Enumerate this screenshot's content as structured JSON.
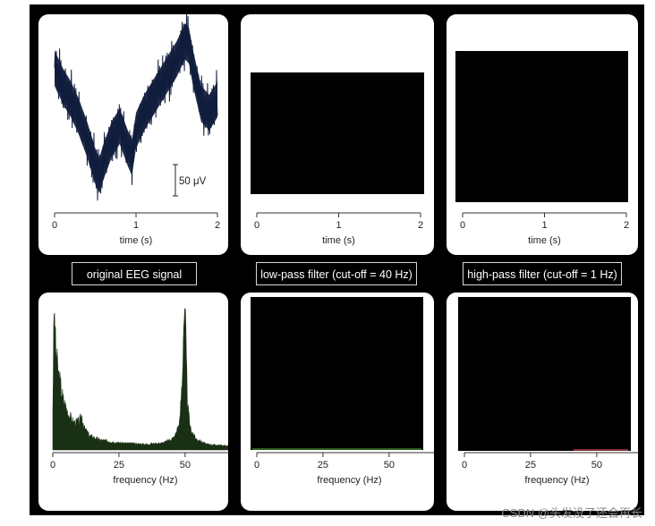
{
  "colors": {
    "frame": "#000000",
    "panel": "#ffffff",
    "eeg_trace": "#101c3c",
    "spectrum_fill": "#1a3014",
    "lowpass_trace": "#3a7a2a",
    "highpass_trace": "#b04040"
  },
  "captions": {
    "original": "original EEG signal",
    "lowpass": "low-pass filter (cut-off = 40 Hz)",
    "highpass": "high-pass filter (cut-off = 1 Hz)"
  },
  "watermark": "CSDN @头发没了还会再长",
  "chart_data": [
    {
      "type": "line",
      "panel": "original-time",
      "xlabel": "time (s)",
      "x_ticks": [
        "0",
        "1",
        "2"
      ],
      "xlim": [
        0,
        2
      ],
      "scale_bar_label": "50 μV",
      "series": [
        {
          "x": [
            0,
            0.1,
            0.2,
            0.3,
            0.4,
            0.5,
            0.55,
            0.6,
            0.7,
            0.8,
            0.9,
            0.95,
            1.0,
            1.1,
            1.2,
            1.3,
            1.4,
            1.5,
            1.6,
            1.65,
            1.7,
            1.8,
            1.9,
            2.0
          ],
          "y": [
            60,
            40,
            25,
            5,
            -20,
            -50,
            -60,
            -45,
            -20,
            -5,
            -30,
            -40,
            -10,
            10,
            25,
            40,
            55,
            70,
            90,
            85,
            60,
            20,
            10,
            25
          ]
        }
      ]
    },
    {
      "type": "line",
      "panel": "lowpass-time",
      "xlabel": "time (s)",
      "x_ticks": [
        "0",
        "1",
        "2"
      ],
      "xlim": [
        0,
        2
      ]
    },
    {
      "type": "line",
      "panel": "highpass-time",
      "xlabel": "time (s)",
      "x_ticks": [
        "0",
        "1",
        "2"
      ],
      "xlim": [
        0,
        2
      ]
    },
    {
      "type": "area",
      "panel": "original-spectrum",
      "xlabel": "frequency (Hz)",
      "x_ticks": [
        "0",
        "25",
        "50"
      ],
      "xlim": [
        0,
        70
      ],
      "series": [
        {
          "x": [
            0,
            0.5,
            1,
            2,
            3,
            4,
            6,
            8,
            10,
            11,
            12,
            14,
            18,
            25,
            35,
            42,
            46,
            48,
            49,
            49.5,
            50,
            50.5,
            51,
            52,
            54,
            58,
            65,
            70
          ],
          "y": [
            0.3,
            1.0,
            0.75,
            0.55,
            0.45,
            0.35,
            0.25,
            0.19,
            0.2,
            0.24,
            0.15,
            0.1,
            0.07,
            0.05,
            0.04,
            0.05,
            0.09,
            0.2,
            0.55,
            0.93,
            1.0,
            0.6,
            0.3,
            0.15,
            0.08,
            0.04,
            0.03,
            0.02
          ]
        }
      ]
    },
    {
      "type": "area",
      "panel": "lowpass-spectrum",
      "xlabel": "frequency (Hz)",
      "x_ticks": [
        "0",
        "25",
        "50"
      ],
      "xlim": [
        0,
        70
      ]
    },
    {
      "type": "area",
      "panel": "highpass-spectrum",
      "xlabel": "frequency (Hz)",
      "x_ticks": [
        "0",
        "25",
        "50"
      ],
      "xlim": [
        0,
        70
      ]
    }
  ]
}
